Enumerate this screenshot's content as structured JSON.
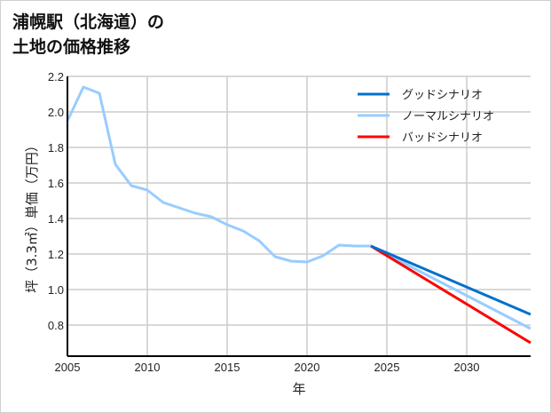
{
  "chart_data": {
    "type": "line",
    "title_line1": "浦幌駅（北海道）の",
    "title_line2": "土地の価格推移",
    "xlabel": "年",
    "ylabel": "坪（3.3㎡）単価（万円）",
    "xlim": [
      2005,
      2034
    ],
    "ylim": [
      0.625,
      2.2
    ],
    "xticks": [
      2005,
      2010,
      2015,
      2020,
      2025,
      2030
    ],
    "yticks": [
      0.8,
      1.0,
      1.2,
      1.4,
      1.6,
      1.8,
      2.0,
      2.2
    ],
    "grid": true,
    "legend_position": "top-right",
    "series": [
      {
        "name": "グッドシナリオ",
        "color": "#0070cc",
        "x": [
          2024,
          2034
        ],
        "y": [
          1.245,
          0.86
        ]
      },
      {
        "name": "ノーマルシナリオ",
        "color": "#99ccff",
        "x": [
          2005,
          2006,
          2007,
          2008,
          2009,
          2010,
          2011,
          2012,
          2013,
          2014,
          2015,
          2016,
          2017,
          2018,
          2019,
          2020,
          2021,
          2022,
          2023,
          2024,
          2034
        ],
        "y": [
          1.95,
          2.14,
          2.105,
          1.705,
          1.585,
          1.56,
          1.49,
          1.46,
          1.43,
          1.41,
          1.365,
          1.33,
          1.275,
          1.185,
          1.16,
          1.155,
          1.19,
          1.25,
          1.245,
          1.245,
          0.78
        ]
      },
      {
        "name": "バッドシナリオ",
        "color": "#ff0000",
        "x": [
          2024,
          2034
        ],
        "y": [
          1.245,
          0.7
        ]
      }
    ]
  }
}
